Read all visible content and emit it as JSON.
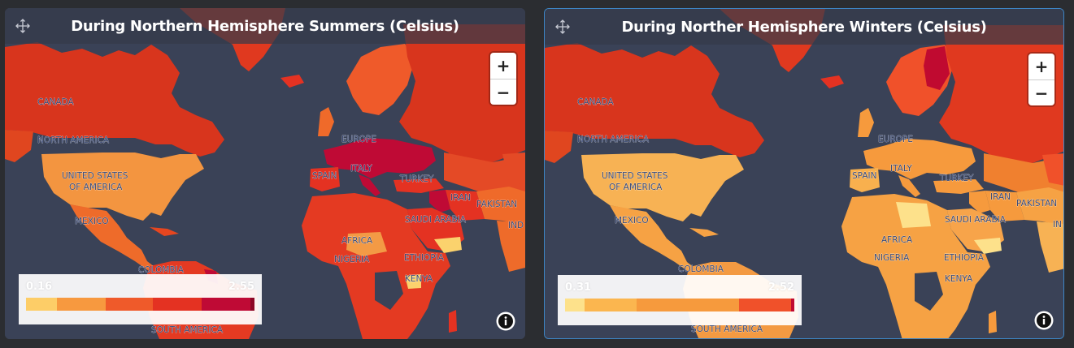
{
  "panels": [
    {
      "title": "During Northern Hemisphere Summers (Celsius)",
      "legend": {
        "min": "0.16",
        "max": "2.55",
        "bands": [
          "#fdcd67",
          "#f7993f",
          "#ef5a2a",
          "#e43222",
          "#bf0a35",
          "#8c0625"
        ]
      },
      "labels": {
        "canada": "CANADA",
        "north_america": "NORTH AMERICA",
        "usa_1": "UNITED STATES",
        "usa_2": "OF AMERICA",
        "mexico": "MEXICO",
        "colombia": "COLOMBIA",
        "south_america": "SOUTH AMERICA",
        "europe": "EUROPE",
        "spain": "SPAIN",
        "italy": "ITALY",
        "turkey": "TURKEY",
        "iran": "IRAN",
        "pakistan": "PAKISTAN",
        "saudi_arabia": "SAUDI ARABIA",
        "india": "IND",
        "africa": "AFRICA",
        "nigeria": "NIGERIA",
        "ethiopia": "ETHIOPIA",
        "kenya": "KENYA"
      },
      "zoom_in": "+",
      "zoom_out": "−"
    },
    {
      "title": "During Norther Hemisphere Winters (Celsius)",
      "legend": {
        "min": "0.31",
        "max": "2.52",
        "bands": [
          "#fde18b",
          "#fbb64f",
          "#f69a3d",
          "#f0512a",
          "#c00a30"
        ]
      },
      "labels": {
        "canada": "CANADA",
        "north_america": "NORTH AMERICA",
        "usa_1": "UNITED STATES",
        "usa_2": "OF AMERICA",
        "mexico": "MEXICO",
        "colombia": "COLOMBIA",
        "south_america": "SOUTH AMERICA",
        "europe": "EUROPE",
        "spain": "SPAIN",
        "italy": "ITALY",
        "turkey": "TURKEY",
        "iran": "IRAN",
        "pakistan": "PAKISTAN",
        "saudi_arabia": "SAUDI ARABIA",
        "india": "IN",
        "africa": "AFRICA",
        "nigeria": "NIGERIA",
        "ethiopia": "ETHIOPIA",
        "kenya": "KENYA"
      },
      "zoom_in": "+",
      "zoom_out": "−"
    }
  ]
}
